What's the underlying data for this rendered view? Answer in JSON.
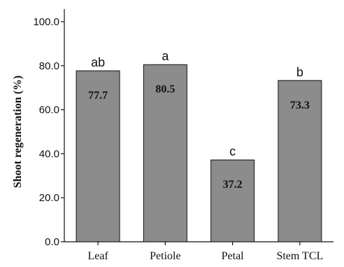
{
  "chart_data": {
    "type": "bar",
    "categories": [
      "Leaf",
      "Petiole",
      "Petal",
      "Stem TCL"
    ],
    "values": [
      77.7,
      80.5,
      37.2,
      73.3
    ],
    "data_labels": [
      "77.7",
      "80.5",
      "37.2",
      "73.3"
    ],
    "group_labels": [
      "ab",
      "a",
      "c",
      "b"
    ],
    "xlabel": "",
    "ylabel": "Shoot  regeneration (%)",
    "ylim": [
      0,
      100
    ],
    "y_ticks": [
      "0.0",
      "20.0",
      "40.0",
      "60.0",
      "80.0",
      "100.0"
    ],
    "grid": false,
    "legend": "none",
    "colors": {
      "bar_fill": "#8c8c8c",
      "bar_stroke": "#111111",
      "axis": "#111111",
      "background": "#ffffff"
    }
  }
}
